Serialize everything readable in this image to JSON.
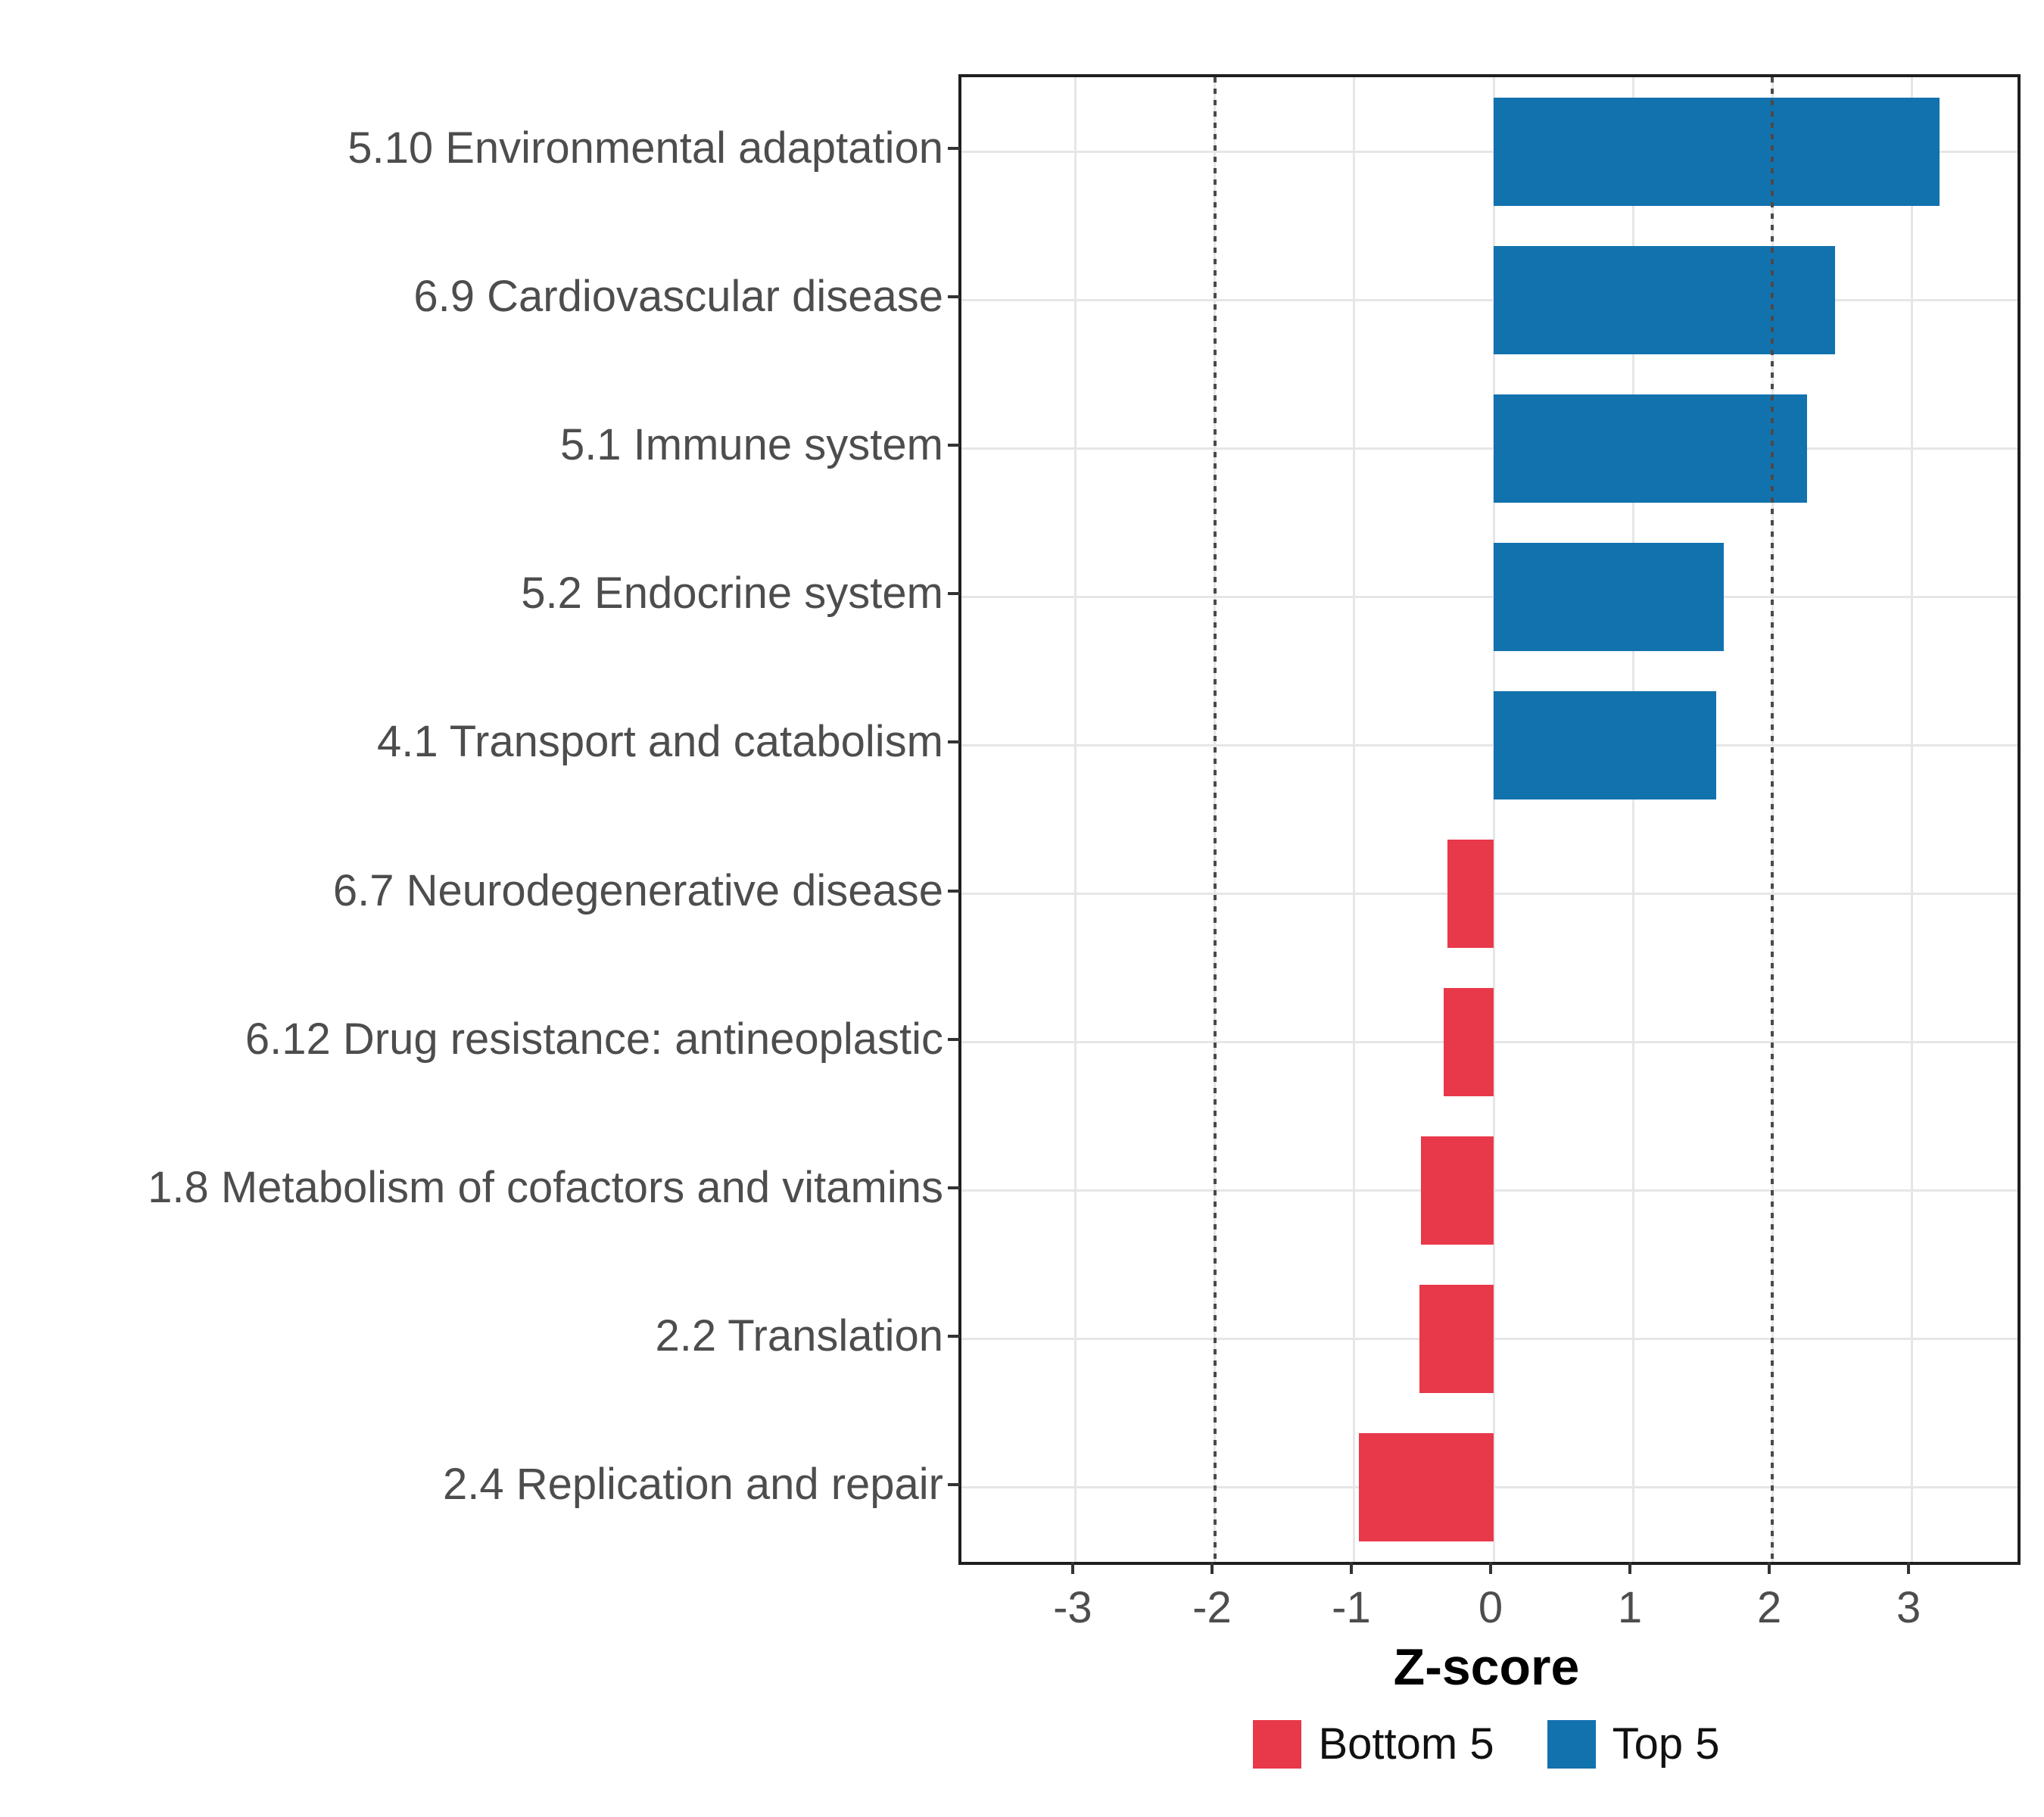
{
  "chart_data": {
    "type": "bar",
    "orientation": "horizontal",
    "title": "",
    "xlabel": "Z-score",
    "ylabel": "",
    "xlim": [
      -3.82,
      3.76
    ],
    "x_ticks": [
      -3,
      -2,
      -1,
      0,
      1,
      2,
      3
    ],
    "x_tick_labels": [
      "-3",
      "-2",
      "-1",
      "0",
      "1",
      "2",
      "3"
    ],
    "reference_lines": [
      -2,
      2
    ],
    "grid": true,
    "legend_position": "bottom",
    "categories": [
      "5.10 Environmental adaptation",
      "6.9 Cardiovascular disease",
      "5.1 Immune system",
      "5.2 Endocrine system",
      "4.1 Transport and catabolism",
      "6.7 Neurodegenerative disease",
      "6.12 Drug resistance: antineoplastic",
      "1.8 Metabolism of cofactors and vitamins",
      "2.2 Translation",
      "2.4 Replication and repair"
    ],
    "values": [
      3.2,
      2.45,
      2.25,
      1.65,
      1.6,
      -0.33,
      -0.36,
      -0.52,
      -0.53,
      -0.97
    ],
    "groups": [
      "Top 5",
      "Top 5",
      "Top 5",
      "Top 5",
      "Top 5",
      "Bottom 5",
      "Bottom 5",
      "Bottom 5",
      "Bottom 5",
      "Bottom 5"
    ],
    "colors": {
      "Top 5": "#1272AE",
      "Bottom 5": "#E8394A"
    },
    "legend": [
      {
        "label": "Bottom 5",
        "color": "#E8394A"
      },
      {
        "label": "Top 5",
        "color": "#1272AE"
      }
    ]
  }
}
